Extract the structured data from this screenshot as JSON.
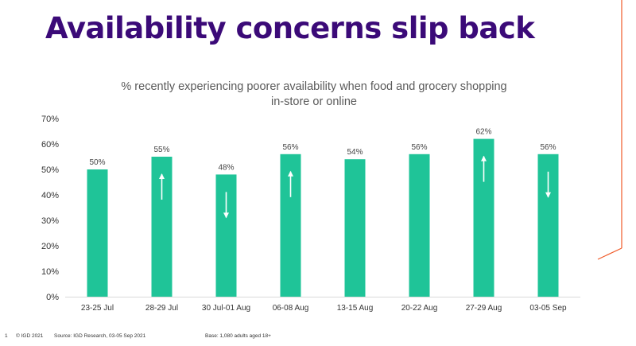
{
  "slide": {
    "title": "Availability concerns slip back",
    "page_number": "1",
    "copyright": "© IGD 2021",
    "source": "Source: IGD Research, 03-05 Sep 2021",
    "base": "Base: 1,080 adults aged 18+"
  },
  "colors": {
    "title": "#3b0a78",
    "bar": "#1fc498",
    "accent_line": "#f05a28",
    "text": "#5a5a5a"
  },
  "chart_data": {
    "type": "bar",
    "title": "% recently experiencing poorer availability when food and grocery shopping in-store or online",
    "title_lines": [
      "% recently experiencing poorer availability when food and grocery shopping",
      "in-store or online"
    ],
    "categories": [
      "23-25 Jul",
      "28-29 Jul",
      "30 Jul-01 Aug",
      "06-08 Aug",
      "13-15 Aug",
      "20-22 Aug",
      "27-29 Aug",
      "03-05 Sep"
    ],
    "values": [
      50,
      55,
      48,
      56,
      54,
      56,
      62,
      56
    ],
    "data_labels": [
      "50%",
      "55%",
      "48%",
      "56%",
      "54%",
      "56%",
      "62%",
      "56%"
    ],
    "change_arrows": [
      "none",
      "up",
      "down",
      "up",
      "none",
      "none",
      "up",
      "down"
    ],
    "ylim": [
      0,
      70
    ],
    "yticks": [
      0,
      10,
      20,
      30,
      40,
      50,
      60,
      70
    ],
    "ytick_labels": [
      "0%",
      "10%",
      "20%",
      "30%",
      "40%",
      "50%",
      "60%",
      "70%"
    ],
    "xlabel": "",
    "ylabel": "",
    "grid": false,
    "legend": "none"
  }
}
